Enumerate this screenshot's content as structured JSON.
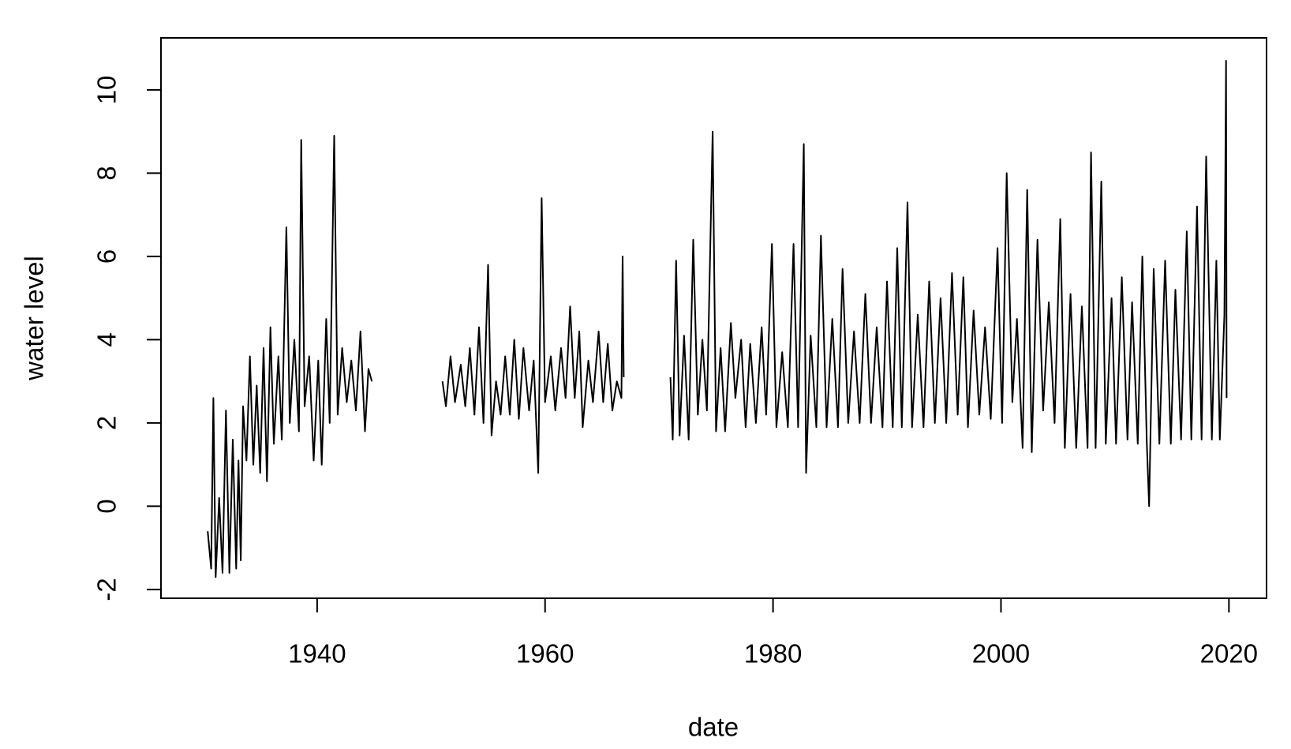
{
  "chart_data": {
    "type": "line",
    "x_label": "date",
    "y_label": "water level",
    "x": [
      1930.4,
      1930.7,
      1930.9,
      1931.1,
      1931.4,
      1931.7,
      1932.0,
      1932.3,
      1932.6,
      1932.9,
      1933.1,
      1933.3,
      1933.5,
      1933.8,
      1934.1,
      1934.4,
      1934.7,
      1935.0,
      1935.3,
      1935.6,
      1935.9,
      1936.2,
      1936.6,
      1936.9,
      1937.3,
      1937.6,
      1938.0,
      1938.4,
      1938.6,
      1938.9,
      1939.3,
      1939.7,
      1940.1,
      1940.4,
      1940.8,
      1941.1,
      1941.5,
      1941.8,
      1942.2,
      1942.6,
      1943.0,
      1943.4,
      1943.8,
      1944.2,
      1944.5,
      1944.8,
      1948,
      1951.0,
      1951.3,
      1951.7,
      1952.1,
      1952.6,
      1953.0,
      1953.4,
      1953.8,
      1954.2,
      1954.6,
      1955.0,
      1955.3,
      1955.7,
      1956.1,
      1956.5,
      1956.9,
      1957.3,
      1957.7,
      1958.1,
      1958.6,
      1959.0,
      1959.4,
      1959.7,
      1960.0,
      1960.5,
      1960.9,
      1961.4,
      1961.8,
      1962.2,
      1962.6,
      1963.0,
      1963.3,
      1963.8,
      1964.2,
      1964.7,
      1965.1,
      1965.5,
      1965.9,
      1966.3,
      1966.7,
      1966.8,
      1966.9,
      1969,
      1971.0,
      1971.2,
      1971.5,
      1971.8,
      1972.2,
      1972.6,
      1973.0,
      1973.4,
      1973.8,
      1974.2,
      1974.7,
      1975.0,
      1975.4,
      1975.8,
      1976.3,
      1976.7,
      1977.2,
      1977.6,
      1978.0,
      1978.5,
      1979.0,
      1979.4,
      1979.9,
      1980.3,
      1980.8,
      1981.3,
      1981.8,
      1982.2,
      1982.7,
      1982.9,
      1983.3,
      1983.8,
      1984.2,
      1984.7,
      1985.2,
      1985.7,
      1986.1,
      1986.6,
      1987.1,
      1987.6,
      1988.1,
      1988.6,
      1989.1,
      1989.6,
      1990.0,
      1990.5,
      1990.9,
      1991.3,
      1991.8,
      1992.2,
      1992.7,
      1993.2,
      1993.7,
      1994.2,
      1994.7,
      1995.2,
      1995.7,
      1996.2,
      1996.7,
      1997.1,
      1997.6,
      1998.1,
      1998.6,
      1999.1,
      1999.7,
      2000.1,
      2000.5,
      2001.0,
      2001.4,
      2001.9,
      2002.3,
      2002.7,
      2003.2,
      2003.7,
      2004.2,
      2004.7,
      2005.2,
      2005.6,
      2006.1,
      2006.6,
      2007.1,
      2007.6,
      2007.9,
      2008.3,
      2008.8,
      2009.2,
      2009.7,
      2010.1,
      2010.6,
      2011.1,
      2011.5,
      2012.0,
      2012.4,
      2012.8,
      2013.0,
      2013.4,
      2013.9,
      2014.4,
      2014.9,
      2015.3,
      2015.8,
      2016.3,
      2016.7,
      2017.2,
      2017.6,
      2018.0,
      2018.5,
      2018.9,
      2019.2,
      2019.6,
      2019.75,
      2019.8
    ],
    "values": [
      -0.6,
      -1.5,
      2.6,
      -1.7,
      0.2,
      -1.6,
      2.3,
      -1.6,
      1.6,
      -1.5,
      1.1,
      -1.3,
      2.4,
      1.1,
      3.6,
      1.0,
      2.9,
      0.8,
      3.8,
      0.6,
      4.3,
      1.5,
      3.6,
      1.6,
      6.7,
      2.0,
      4.0,
      1.8,
      8.8,
      2.4,
      3.6,
      1.1,
      3.5,
      1.0,
      4.5,
      2.0,
      8.9,
      2.2,
      3.8,
      2.5,
      3.5,
      2.3,
      4.2,
      1.8,
      3.3,
      3.0,
      null,
      3.0,
      2.4,
      3.6,
      2.5,
      3.4,
      2.4,
      3.8,
      2.2,
      4.3,
      2.0,
      5.8,
      1.7,
      3.0,
      2.2,
      3.6,
      2.2,
      4.0,
      2.1,
      3.8,
      2.3,
      3.5,
      0.8,
      7.4,
      2.5,
      3.6,
      2.3,
      3.8,
      2.6,
      4.8,
      2.6,
      4.2,
      1.9,
      3.5,
      2.5,
      4.2,
      2.5,
      3.9,
      2.3,
      3.0,
      2.6,
      6.0,
      3.1,
      null,
      3.1,
      1.6,
      5.9,
      1.7,
      4.1,
      1.6,
      6.4,
      2.2,
      4.0,
      2.3,
      9.0,
      1.8,
      3.8,
      1.8,
      4.4,
      2.6,
      4.0,
      1.9,
      3.9,
      2.0,
      4.3,
      2.2,
      6.3,
      1.9,
      3.7,
      1.9,
      6.3,
      1.9,
      8.7,
      0.8,
      4.1,
      1.9,
      6.5,
      1.9,
      4.5,
      1.9,
      5.7,
      2.0,
      4.2,
      2.0,
      5.1,
      2.0,
      4.3,
      1.9,
      5.4,
      1.9,
      6.2,
      1.9,
      7.3,
      1.9,
      4.6,
      1.9,
      5.4,
      2.0,
      5.0,
      2.0,
      5.6,
      2.2,
      5.5,
      1.9,
      4.7,
      2.2,
      4.3,
      2.1,
      6.2,
      2.0,
      8.0,
      2.5,
      4.5,
      1.4,
      7.6,
      1.3,
      6.4,
      2.3,
      4.9,
      2.0,
      6.9,
      1.4,
      5.1,
      1.4,
      4.8,
      1.4,
      8.5,
      1.4,
      7.8,
      1.5,
      5.0,
      1.5,
      5.5,
      1.6,
      4.9,
      1.5,
      6.0,
      1.5,
      0.0,
      5.7,
      1.5,
      5.9,
      1.5,
      5.2,
      1.6,
      6.6,
      1.6,
      7.2,
      1.6,
      8.4,
      1.6,
      5.9,
      1.6,
      4.6,
      10.7,
      2.6
    ],
    "color": "#000000",
    "xlim": [
      1926.3,
      2023.3
    ],
    "xticks": [
      1940,
      1960,
      1980,
      2000,
      2020
    ],
    "ylim": [
      -2.21,
      11.25
    ],
    "yticks": [
      -2,
      0,
      2,
      4,
      6,
      8,
      10
    ]
  }
}
